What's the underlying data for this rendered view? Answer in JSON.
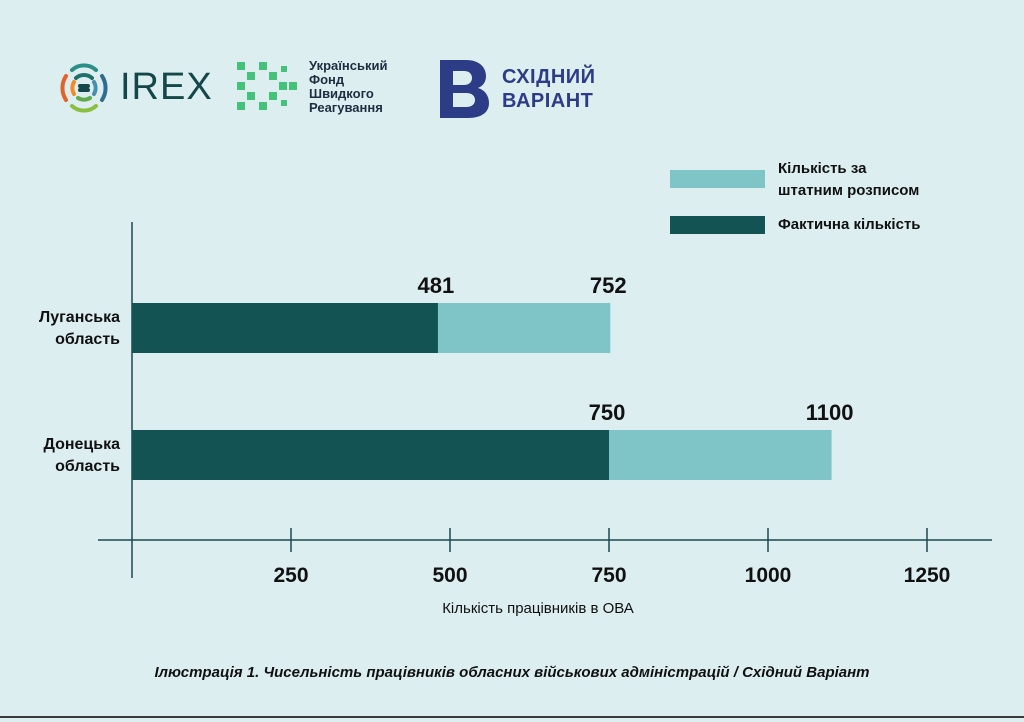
{
  "logos": {
    "irex": "IREX",
    "fund": "Український\nФонд\nШвидкого\nРеагування",
    "sv": "СХІДНИЙ\nВАРІАНТ"
  },
  "legend": [
    {
      "label": "Кількість за\nштатним розписом",
      "color": "#7fc5c8"
    },
    {
      "label": "Фактична кількість",
      "color": "#135354"
    }
  ],
  "chart_data": {
    "type": "bar",
    "orientation": "horizontal",
    "stacked": "overlay",
    "categories": [
      "Луганська область",
      "Донецька область"
    ],
    "series": [
      {
        "name": "Кількість за штатним розписом",
        "values": [
          752,
          1100
        ],
        "color": "#7fc5c8"
      },
      {
        "name": "Фактична кількість",
        "values": [
          481,
          750
        ],
        "color": "#135354"
      }
    ],
    "xlabel": "Кількість працівників в ОВА",
    "xticks": [
      250,
      500,
      750,
      1000,
      1250
    ],
    "xlim": [
      0,
      1400
    ],
    "legend_position": "top-right",
    "grid": false
  },
  "caption": "Ілюстрація 1. Чисельність працівників обласних військових адміністрацій / Східний Варіант"
}
